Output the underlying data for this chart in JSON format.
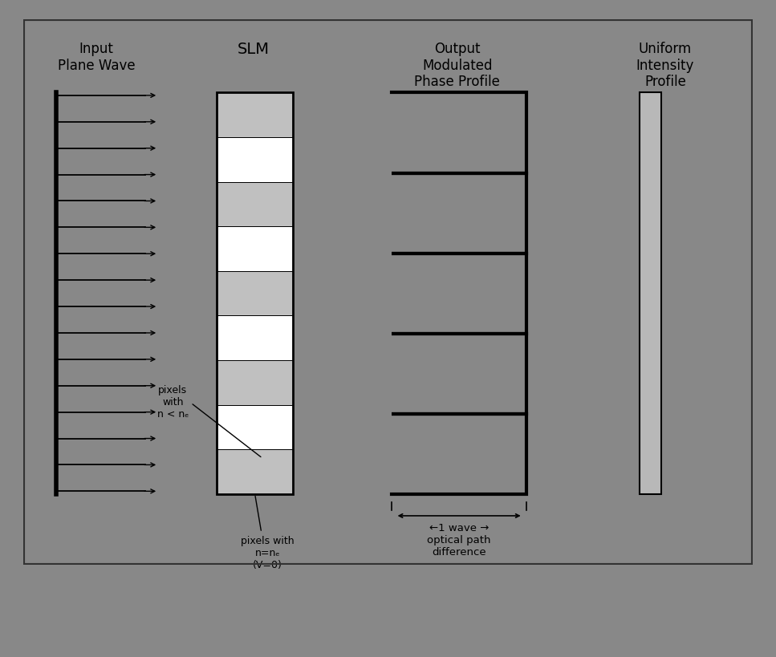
{
  "bg_color": "#ffffff",
  "fig_bg_color": "#888888",
  "panel_border_color": "#333333",
  "label_input": "Input\nPlane Wave",
  "label_slm": "SLM",
  "label_output": "Output\nModulated\nPhase Profile",
  "label_uniform": "Uniform\nIntensity\nProfile",
  "label_pixels_gray": "pixels\nwith\nn < nₑ",
  "label_pixels_white": "pixels with\nn=nₑ\n(V=0)",
  "label_opd": "←1 wave →\noptical path\ndifference",
  "slm_gray_color": "#c0c0c0",
  "slm_white_color": "#ffffff",
  "uniform_bar_color": "#b8b8b8",
  "sawtooth_lw": 3.0,
  "n_slm_bands": 9,
  "n_sawtooth_steps": 5,
  "n_arrows": 16
}
